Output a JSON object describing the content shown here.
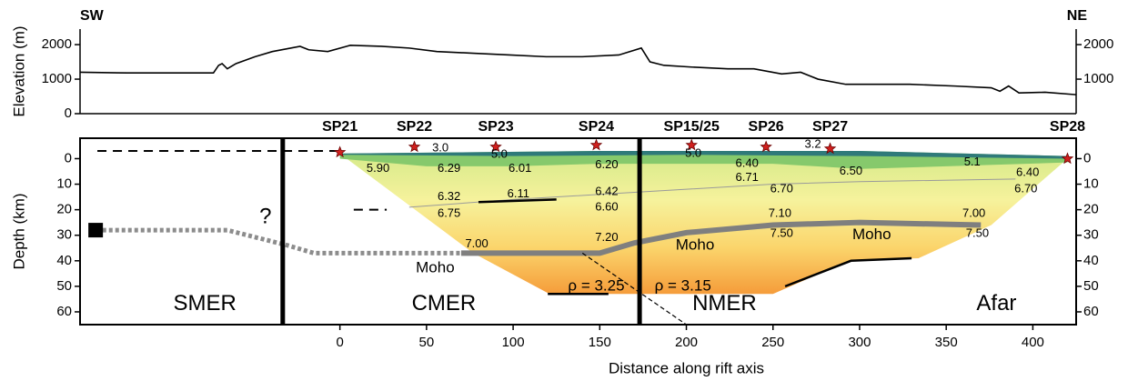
{
  "chart_data": [
    {
      "type": "line",
      "y_label": "Elevation (m)",
      "left_label": "SW",
      "right_label": "NE",
      "color": "#000000",
      "x": [
        -150,
        -123,
        -73,
        -70,
        -68,
        -65,
        -60,
        -49,
        -39,
        -23,
        -18,
        -7,
        6,
        24,
        40,
        56,
        77,
        98,
        119,
        140,
        161,
        174,
        179,
        187,
        203,
        224,
        239,
        255,
        266,
        276,
        292,
        308,
        329,
        355,
        376,
        381,
        386,
        392,
        407,
        425
      ],
      "values": [
        1200,
        1180,
        1180,
        1400,
        1450,
        1300,
        1450,
        1650,
        1800,
        1950,
        1850,
        1800,
        1980,
        1950,
        1900,
        1800,
        1750,
        1700,
        1650,
        1650,
        1700,
        1900,
        1500,
        1400,
        1350,
        1300,
        1300,
        1150,
        1200,
        1000,
        850,
        850,
        850,
        800,
        750,
        650,
        800,
        600,
        620,
        550
      ],
      "xlim": [
        -150,
        425
      ],
      "ylim": [
        0,
        2450
      ],
      "yticks": [
        0,
        1000,
        2000
      ],
      "y2lim": [
        0,
        2450
      ],
      "y2ticks": [
        1000,
        2000
      ]
    },
    {
      "type": "cross-section",
      "x_label": "Distance along rift axis",
      "y_label": "Depth (km)",
      "xlim": [
        -150,
        425
      ],
      "ylim": [
        -8,
        65
      ],
      "y_inverted": true,
      "xticks": [
        0,
        50,
        100,
        150,
        200,
        250,
        300,
        350,
        400
      ],
      "yticks": [
        0,
        10,
        20,
        30,
        40,
        50,
        60
      ],
      "y2lim": [
        -8,
        65
      ],
      "y2ticks": [
        0,
        10,
        20,
        30,
        40,
        50,
        60
      ],
      "bodies": [
        {
          "gradient": [
            "#d6ea8a",
            "#f6f29c",
            "#fbd56c",
            "#f59c3a"
          ],
          "x": [
            0,
            420,
            420,
            376,
            334,
            294,
            250,
            121,
            77,
            0
          ],
          "depth": [
            -2,
            -1,
            0,
            26,
            39,
            40,
            53,
            53,
            37,
            -2
          ]
        },
        {
          "color": "#86c96c",
          "x": [
            0,
            150,
            300,
            420,
            420,
            350,
            300,
            250,
            150,
            100,
            50,
            0
          ],
          "depth": [
            -2,
            -3,
            -3,
            -1,
            1.5,
            3,
            4,
            2,
            2,
            3,
            3,
            0
          ]
        },
        {
          "color": "#2f7a7a",
          "x": [
            0,
            150,
            300,
            420,
            420,
            300,
            200,
            100,
            0
          ],
          "depth": [
            -2,
            -3,
            -3,
            -1,
            0,
            -1,
            -1.5,
            -1,
            -1.5
          ]
        }
      ],
      "lines": [
        {
          "style": "thin",
          "color": "#9a9a9a",
          "x": [
            40,
            100,
            150,
            200,
            250,
            300,
            390
          ],
          "depth": [
            19,
            16,
            14,
            12,
            10,
            9,
            8
          ]
        },
        {
          "style": "thick",
          "color": "#7f7f7f",
          "x": [
            70,
            100,
            150,
            170,
            200,
            250,
            300,
            370
          ],
          "depth": [
            37,
            37,
            37,
            33,
            29,
            26,
            25,
            26
          ]
        },
        {
          "style": "dotted",
          "color": "#8c8c8c",
          "x": [
            -137,
            -65,
            -30,
            -15,
            70
          ],
          "depth": [
            28,
            28,
            34,
            37,
            37
          ]
        },
        {
          "style": "solid",
          "color": "#000000",
          "x": [
            80,
            125
          ],
          "depth": [
            17,
            16
          ]
        },
        {
          "style": "solid",
          "color": "#000000",
          "x": [
            120,
            155
          ],
          "depth": [
            53,
            53
          ]
        },
        {
          "style": "solid",
          "color": "#000000",
          "x": [
            257,
            295,
            330
          ],
          "depth": [
            50,
            40,
            39
          ]
        },
        {
          "style": "dashed",
          "color": "#000000",
          "x": [
            -140,
            0
          ],
          "depth": [
            -3,
            -3
          ]
        },
        {
          "style": "dashed",
          "color": "#000000",
          "x": [
            8,
            27
          ],
          "depth": [
            20,
            20
          ]
        },
        {
          "style": "fine-dashed",
          "color": "#000000",
          "x": [
            140,
            200
          ],
          "depth": [
            37,
            65
          ]
        },
        {
          "style": "boundary",
          "color": "#000000",
          "x": [
            -33,
            -33
          ],
          "depth": [
            -8,
            65
          ]
        },
        {
          "style": "boundary",
          "color": "#000000",
          "x": [
            173,
            173
          ],
          "depth": [
            -8,
            65
          ]
        }
      ],
      "markers": [
        {
          "x": -141,
          "depth": 28
        }
      ],
      "shot_points": [
        {
          "name": "SP21",
          "x": 0,
          "depth": -2.5
        },
        {
          "name": "SP22",
          "x": 43,
          "depth": -4.6
        },
        {
          "name": "SP23",
          "x": 90,
          "depth": -4.6
        },
        {
          "name": "SP24",
          "x": 148,
          "depth": -5.3
        },
        {
          "name": "SP15/25",
          "x": 203,
          "depth": -5.3
        },
        {
          "name": "SP26",
          "x": 246,
          "depth": -4.6
        },
        {
          "name": "SP27",
          "x": 283,
          "depth": -3.9
        },
        {
          "name": "SP28",
          "x": 420,
          "depth": 0
        }
      ],
      "annotations": [
        {
          "text": "SMER",
          "x": -78,
          "depth": 57,
          "style": "region"
        },
        {
          "text": "CMER",
          "x": 60,
          "depth": 57,
          "style": "region"
        },
        {
          "text": "NMER",
          "x": 222,
          "depth": 57,
          "style": "region"
        },
        {
          "text": "Afar",
          "x": 379,
          "depth": 57,
          "style": "region"
        },
        {
          "text": "?",
          "x": -43,
          "depth": 23,
          "style": "region"
        },
        {
          "text": "Moho",
          "x": 55,
          "depth": 43,
          "style": "label"
        },
        {
          "text": "Moho",
          "x": 205,
          "depth": 34,
          "style": "label"
        },
        {
          "text": "Moho",
          "x": 307,
          "depth": 30,
          "style": "label"
        },
        {
          "text": "ρ = 3.25",
          "x": 148,
          "depth": 50,
          "style": "label"
        },
        {
          "text": "ρ = 3.15",
          "x": 198,
          "depth": 50,
          "style": "label"
        },
        {
          "text": "3.0",
          "x": 58,
          "depth": -4,
          "style": "velocity"
        },
        {
          "text": "5.0",
          "x": 92,
          "depth": -1.5,
          "style": "velocity"
        },
        {
          "text": "5.0",
          "x": 204,
          "depth": -2,
          "style": "velocity"
        },
        {
          "text": "3.2",
          "x": 273,
          "depth": -5.5,
          "style": "velocity"
        },
        {
          "text": "5.90",
          "x": 22,
          "depth": 4,
          "style": "velocity"
        },
        {
          "text": "6.29",
          "x": 63,
          "depth": 4,
          "style": "velocity"
        },
        {
          "text": "6.01",
          "x": 104,
          "depth": 4,
          "style": "velocity"
        },
        {
          "text": "6.20",
          "x": 154,
          "depth": 2.5,
          "style": "velocity"
        },
        {
          "text": "6.40",
          "x": 235,
          "depth": 2,
          "style": "velocity"
        },
        {
          "text": "6.71",
          "x": 235,
          "depth": 7.5,
          "style": "velocity"
        },
        {
          "text": "6.50",
          "x": 295,
          "depth": 5,
          "style": "velocity"
        },
        {
          "text": "5.1",
          "x": 365,
          "depth": 1.5,
          "style": "velocity"
        },
        {
          "text": "6.40",
          "x": 397,
          "depth": 5.5,
          "style": "velocity"
        },
        {
          "text": "6.70",
          "x": 396,
          "depth": 12,
          "style": "velocity"
        },
        {
          "text": "6.70",
          "x": 255,
          "depth": 12,
          "style": "velocity"
        },
        {
          "text": "6.32",
          "x": 63,
          "depth": 15,
          "style": "velocity"
        },
        {
          "text": "6.11",
          "x": 103,
          "depth": 14,
          "style": "velocity"
        },
        {
          "text": "6.42",
          "x": 154,
          "depth": 13,
          "style": "velocity"
        },
        {
          "text": "6.60",
          "x": 154,
          "depth": 19,
          "style": "velocity"
        },
        {
          "text": "6.75",
          "x": 63,
          "depth": 21.5,
          "style": "velocity"
        },
        {
          "text": "7.10",
          "x": 254,
          "depth": 21.5,
          "style": "velocity"
        },
        {
          "text": "7.00",
          "x": 366,
          "depth": 21.5,
          "style": "velocity"
        },
        {
          "text": "7.00",
          "x": 79,
          "depth": 33.5,
          "style": "velocity"
        },
        {
          "text": "7.20",
          "x": 154,
          "depth": 31,
          "style": "velocity"
        },
        {
          "text": "7.50",
          "x": 255,
          "depth": 29.5,
          "style": "velocity"
        },
        {
          "text": "7.50",
          "x": 368,
          "depth": 29.5,
          "style": "velocity"
        }
      ]
    }
  ]
}
